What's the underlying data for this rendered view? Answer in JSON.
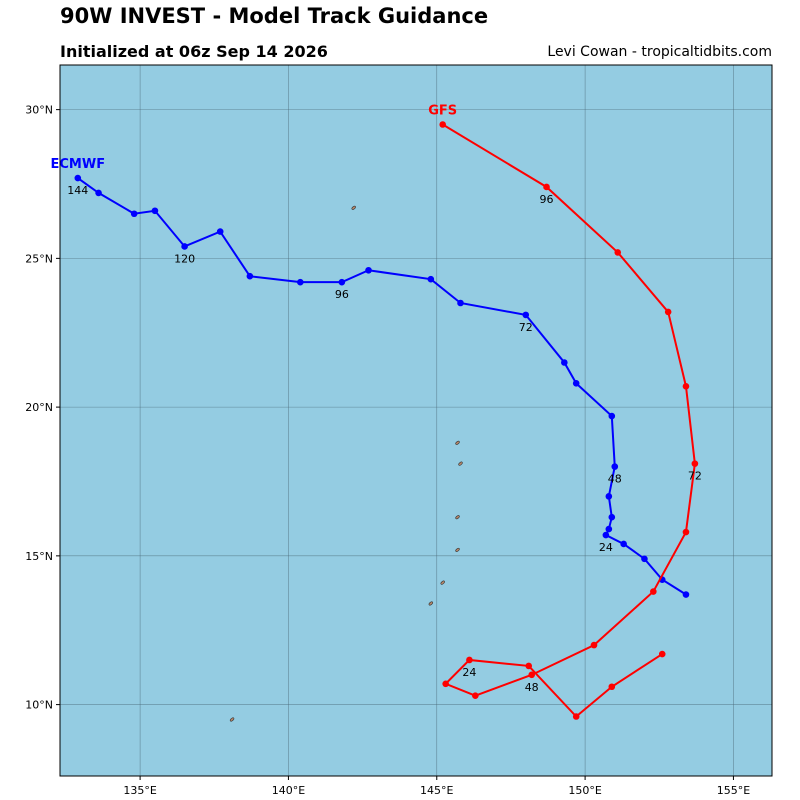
{
  "header": {
    "title": "90W INVEST - Model Track Guidance",
    "subtitle": "Initialized at 06z Sep 14 2026",
    "credit": "Levi Cowan - tropicaltidbits.com"
  },
  "map": {
    "lon_range": [
      132.3,
      156.3
    ],
    "lat_range": [
      7.6,
      31.5
    ],
    "lon_ticks": [
      135,
      140,
      145,
      150,
      155
    ],
    "lon_tick_labels": [
      "135°E",
      "140°E",
      "145°E",
      "150°E",
      "155°E"
    ],
    "lat_ticks": [
      10,
      15,
      20,
      25,
      30
    ],
    "lat_tick_labels": [
      "10°N",
      "15°N",
      "20°N",
      "25°N",
      "30°N"
    ],
    "ocean_color": "#94cce2",
    "land_color": "#b5866a"
  },
  "chart_data": {
    "type": "line",
    "series": [
      {
        "name": "ECMWF",
        "color": "#0000ff",
        "points": [
          [
            153.4,
            13.7
          ],
          [
            152.6,
            14.2
          ],
          [
            152.0,
            14.9
          ],
          [
            151.3,
            15.4
          ],
          [
            150.7,
            15.7
          ],
          [
            150.8,
            15.9
          ],
          [
            150.9,
            16.3
          ],
          [
            150.8,
            17.0
          ],
          [
            151.0,
            18.0
          ],
          [
            150.9,
            19.7
          ],
          [
            149.7,
            20.8
          ],
          [
            149.3,
            21.5
          ],
          [
            148.0,
            23.1
          ],
          [
            145.8,
            23.5
          ],
          [
            144.8,
            24.3
          ],
          [
            142.7,
            24.6
          ],
          [
            141.8,
            24.2
          ],
          [
            140.4,
            24.2
          ],
          [
            138.7,
            24.4
          ],
          [
            137.7,
            25.9
          ],
          [
            136.5,
            25.4
          ],
          [
            135.5,
            26.6
          ],
          [
            134.8,
            26.5
          ],
          [
            133.6,
            27.2
          ],
          [
            132.9,
            27.7
          ]
        ],
        "hour_labels": [
          {
            "index": 4,
            "text": "24"
          },
          {
            "index": 8,
            "text": "48"
          },
          {
            "index": 12,
            "text": "72"
          },
          {
            "index": 16,
            "text": "96"
          },
          {
            "index": 20,
            "text": "120"
          },
          {
            "index": 24,
            "text": "144"
          }
        ]
      },
      {
        "name": "GFS",
        "color": "#ff0000",
        "points": [
          [
            152.6,
            11.7
          ],
          [
            150.9,
            10.6
          ],
          [
            149.7,
            9.6
          ],
          [
            148.1,
            11.3
          ],
          [
            146.1,
            11.5
          ],
          [
            145.3,
            10.7
          ],
          [
            146.3,
            10.3
          ],
          [
            148.2,
            11.0
          ],
          [
            150.3,
            12.0
          ],
          [
            152.3,
            13.8
          ],
          [
            153.4,
            15.8
          ],
          [
            153.7,
            18.1
          ],
          [
            153.4,
            20.7
          ],
          [
            152.8,
            23.2
          ],
          [
            151.1,
            25.2
          ],
          [
            148.7,
            27.4
          ],
          [
            145.2,
            29.5
          ]
        ],
        "hour_labels": [
          {
            "index": 4,
            "text": "24"
          },
          {
            "index": 7,
            "text": "48"
          },
          {
            "index": 11,
            "text": "72"
          },
          {
            "index": 15,
            "text": "96"
          }
        ]
      }
    ]
  },
  "islands": [
    {
      "lon": 142.2,
      "lat": 26.7
    },
    {
      "lon": 145.7,
      "lat": 18.8
    },
    {
      "lon": 145.8,
      "lat": 18.1
    },
    {
      "lon": 145.7,
      "lat": 16.3
    },
    {
      "lon": 145.7,
      "lat": 15.2
    },
    {
      "lon": 144.8,
      "lat": 13.4
    },
    {
      "lon": 145.2,
      "lat": 14.1
    },
    {
      "lon": 138.1,
      "lat": 9.5
    },
    {
      "lon": 134.6,
      "lat": 7.5
    }
  ]
}
